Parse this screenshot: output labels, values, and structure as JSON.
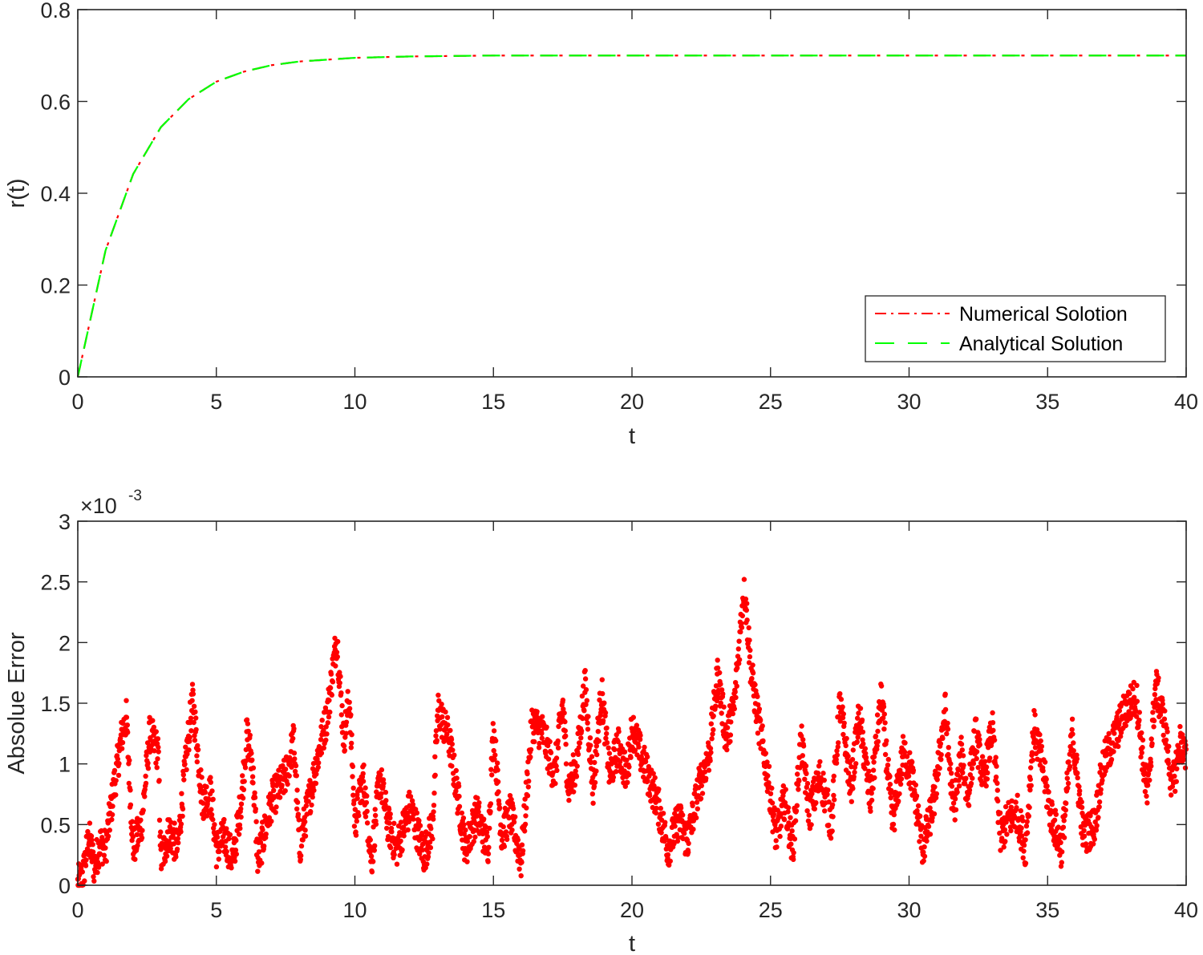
{
  "chart_data": [
    {
      "type": "line",
      "title": "",
      "xlabel": "t",
      "ylabel": "r(t)",
      "xlim": [
        0,
        40
      ],
      "ylim": [
        0,
        0.8
      ],
      "xticks": [
        0,
        5,
        10,
        15,
        20,
        25,
        30,
        35,
        40
      ],
      "yticks": [
        0,
        0.2,
        0.4,
        0.6,
        0.8
      ],
      "xtick_labels": [
        "0",
        "5",
        "10",
        "15",
        "20",
        "25",
        "30",
        "35",
        "40"
      ],
      "ytick_labels": [
        "0",
        "0.2",
        "0.4",
        "0.6",
        "0.8"
      ],
      "grid": false,
      "legend_position": "lower right",
      "x": [
        0,
        1,
        2,
        3,
        4,
        5,
        6,
        7,
        8,
        10,
        12,
        15,
        20,
        25,
        30,
        35,
        40
      ],
      "series": [
        {
          "name": "Numerical Solotion",
          "color": "#ff0000",
          "style": "dash-dot",
          "values": [
            0,
            0.275,
            0.442,
            0.544,
            0.605,
            0.643,
            0.665,
            0.679,
            0.687,
            0.695,
            0.698,
            0.7,
            0.7,
            0.7,
            0.7,
            0.7,
            0.7
          ]
        },
        {
          "name": "Analytical Solution",
          "color": "#00ff00",
          "style": "dashed",
          "values": [
            0,
            0.275,
            0.442,
            0.544,
            0.605,
            0.643,
            0.665,
            0.679,
            0.687,
            0.695,
            0.698,
            0.7,
            0.7,
            0.7,
            0.7,
            0.7,
            0.7
          ]
        }
      ]
    },
    {
      "type": "scatter",
      "title": "",
      "xlabel": "t",
      "ylabel": "Absolue Error",
      "exponent_label": "×10",
      "exponent_power": "-3",
      "xlim": [
        0,
        40
      ],
      "ylim": [
        0,
        3
      ],
      "y_scale": "1e-3",
      "xticks": [
        0,
        5,
        10,
        15,
        20,
        25,
        30,
        35,
        40
      ],
      "yticks": [
        0,
        0.5,
        1,
        1.5,
        2,
        2.5,
        3
      ],
      "xtick_labels": [
        "0",
        "5",
        "10",
        "15",
        "20",
        "25",
        "30",
        "35",
        "40"
      ],
      "ytick_labels": [
        "0",
        "0.5",
        "1",
        "1.5",
        "2",
        "2.5",
        "3"
      ],
      "grid": false,
      "marker_color": "#ff0000",
      "series": [
        {
          "name": "Absolute Error",
          "x": [
            0,
            0.2,
            0.4,
            0.6,
            0.8,
            1.0,
            1.3,
            1.6,
            1.75,
            2.0,
            2.3,
            2.6,
            2.9,
            3.0,
            3.3,
            3.6,
            4.0,
            4.15,
            4.5,
            4.8,
            5.0,
            5.3,
            5.6,
            5.9,
            6.1,
            6.3,
            6.5,
            7.0,
            7.5,
            7.8,
            8.0,
            8.3,
            8.6,
            9.0,
            9.35,
            9.6,
            9.8,
            10.0,
            10.3,
            10.6,
            10.9,
            11.2,
            11.5,
            12.0,
            12.5,
            12.8,
            13.0,
            13.4,
            13.7,
            14.0,
            14.4,
            14.8,
            15.0,
            15.3,
            15.6,
            16.0,
            16.4,
            16.8,
            17.2,
            17.5,
            17.7,
            18.0,
            18.3,
            18.6,
            18.9,
            19.2,
            19.5,
            19.8,
            20.0,
            20.5,
            20.9,
            21.3,
            21.7,
            22.0,
            22.4,
            22.8,
            23.1,
            23.4,
            23.7,
            24.05,
            24.3,
            24.6,
            24.9,
            25.2,
            25.5,
            25.8,
            26.1,
            26.4,
            26.8,
            27.2,
            27.5,
            27.9,
            28.2,
            28.6,
            29.0,
            29.4,
            29.8,
            30.1,
            30.5,
            30.9,
            31.3,
            31.6,
            31.9,
            32.1,
            32.4,
            32.7,
            33.0,
            33.3,
            33.6,
            33.9,
            34.2,
            34.5,
            34.8,
            35.1,
            35.5,
            35.9,
            36.3,
            36.7,
            37.0,
            37.4,
            37.8,
            38.2,
            38.6,
            38.9,
            39.2,
            39.5,
            39.8,
            40.0
          ],
          "y": [
            0.0,
            0.1,
            0.4,
            0.15,
            0.35,
            0.3,
            0.8,
            1.25,
            1.38,
            0.3,
            0.5,
            1.25,
            1.1,
            0.2,
            0.45,
            0.3,
            1.25,
            1.52,
            0.7,
            0.75,
            0.3,
            0.4,
            0.2,
            0.7,
            1.25,
            1.0,
            0.2,
            0.7,
            0.9,
            1.2,
            0.3,
            0.65,
            1.0,
            1.4,
            2.05,
            1.2,
            1.55,
            0.5,
            0.9,
            0.2,
            0.9,
            0.5,
            0.3,
            0.65,
            0.25,
            0.5,
            1.45,
            1.2,
            0.75,
            0.3,
            0.6,
            0.3,
            1.3,
            0.4,
            0.6,
            0.2,
            1.35,
            1.25,
            0.9,
            1.5,
            0.8,
            1.0,
            1.65,
            0.8,
            1.6,
            0.9,
            1.15,
            0.9,
            1.3,
            0.95,
            0.7,
            0.3,
            0.55,
            0.35,
            0.8,
            1.1,
            1.75,
            1.2,
            1.5,
            2.5,
            1.75,
            1.3,
            0.9,
            0.4,
            0.7,
            0.3,
            1.2,
            0.6,
            0.9,
            0.5,
            1.5,
            0.8,
            1.4,
            0.7,
            1.55,
            0.5,
            1.1,
            0.9,
            0.3,
            0.7,
            1.45,
            0.6,
            1.1,
            0.7,
            1.25,
            0.85,
            1.3,
            0.4,
            0.55,
            0.6,
            0.3,
            1.3,
            1.0,
            0.6,
            0.3,
            1.25,
            0.4,
            0.5,
            1.0,
            1.2,
            1.45,
            1.55,
            0.7,
            1.65,
            1.35,
            0.8,
            1.2,
            1.0
          ]
        }
      ]
    }
  ],
  "legend": {
    "items": [
      {
        "label": "Numerical Solotion",
        "color": "#ff0000",
        "style": "dash-dot"
      },
      {
        "label": "Analytical Solution",
        "color": "#00ff00",
        "style": "dashed"
      }
    ]
  },
  "top_axes": {
    "xlabel": "t",
    "ylabel": "r(t)",
    "xtick_labels": [
      "0",
      "5",
      "10",
      "15",
      "20",
      "25",
      "30",
      "35",
      "40"
    ],
    "ytick_labels": [
      "0",
      "0.2",
      "0.4",
      "0.6",
      "0.8"
    ]
  },
  "bottom_axes": {
    "xlabel": "t",
    "ylabel": "Absolue Error",
    "exponent_base": "×10",
    "exponent_power": "-3",
    "xtick_labels": [
      "0",
      "5",
      "10",
      "15",
      "20",
      "25",
      "30",
      "35",
      "40"
    ],
    "ytick_labels": [
      "0",
      "0.5",
      "1",
      "1.5",
      "2",
      "2.5",
      "3"
    ]
  }
}
